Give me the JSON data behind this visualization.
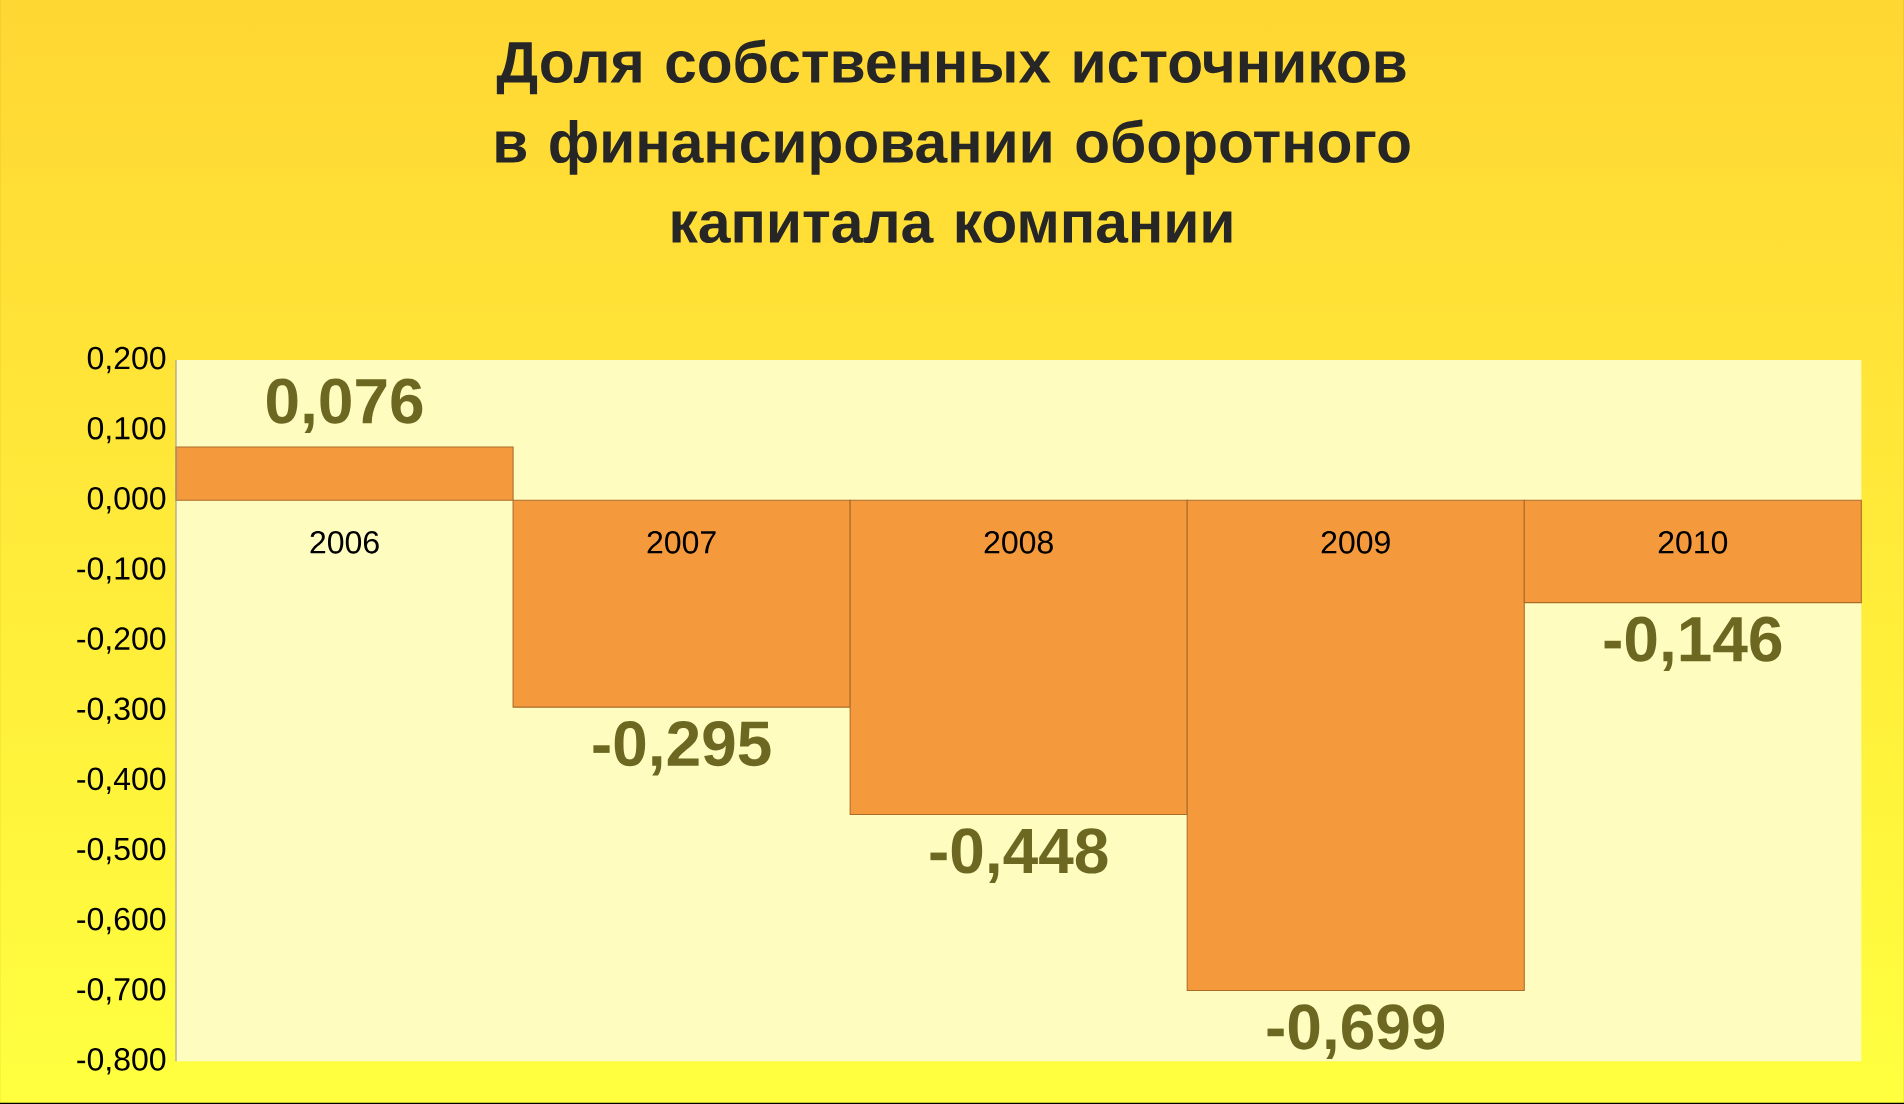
{
  "chart_data": {
    "type": "bar",
    "title": "Доля собственных источников в финансировании оборотного капитала компании",
    "categories": [
      "2006",
      "2007",
      "2008",
      "2009",
      "2010"
    ],
    "values": [
      0.076,
      -0.295,
      -0.448,
      -0.699,
      -0.146
    ],
    "value_labels": [
      "0,076",
      "-0,295",
      "-0,448",
      "-0,699",
      "-0,146"
    ],
    "color": "#f49a3c",
    "ylim": [
      -0.8,
      0.2
    ],
    "yticks": [
      {
        "value": -0.8,
        "label": "-0,800"
      },
      {
        "value": -0.7,
        "label": "-0,700"
      },
      {
        "value": -0.6,
        "label": "-0,600"
      },
      {
        "value": -0.5,
        "label": "-0,500"
      },
      {
        "value": -0.4,
        "label": "-0,400"
      },
      {
        "value": -0.3,
        "label": "-0,300"
      },
      {
        "value": -0.2,
        "label": "-0,200"
      },
      {
        "value": -0.1,
        "label": "-0,100"
      },
      {
        "value": 0,
        "label": "0,000"
      },
      {
        "value": 0.1,
        "label": "0,100"
      },
      {
        "value": 0.2,
        "label": "0,200"
      }
    ],
    "grid": false
  }
}
